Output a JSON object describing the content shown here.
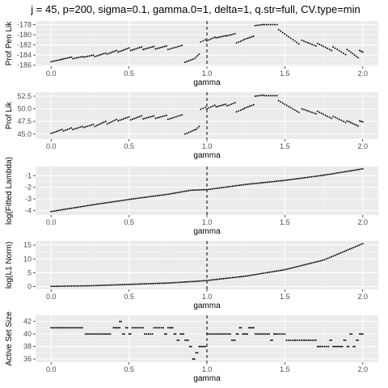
{
  "title": "j = 45, p=200, sigma=0.1, gamma.0=1, delta=1, q.str=full, CV.type=min",
  "colors": {
    "panel": "#ebebeb",
    "grid_major": "#ffffff",
    "grid_minor": "#f5f5f5",
    "points": "#000000",
    "vline": "#000000"
  },
  "chart_data": [
    {
      "type": "scatter",
      "xlabel": "gamma",
      "ylabel": "Prof Pen Lik",
      "xlim": [
        -0.1,
        2.1
      ],
      "ylim": [
        -186.2,
        -177.3
      ],
      "xticks": [
        0.0,
        0.5,
        1.0,
        1.5,
        2.0
      ],
      "xtick_labels": [
        "0.0",
        "0.5",
        "1.0",
        "1.5",
        "2.0"
      ],
      "yticks": [
        -186,
        -184,
        -182,
        -180,
        -178
      ],
      "ytick_labels": [
        "-186",
        "-184",
        "-182",
        "-180",
        "-178"
      ],
      "vline": 1.0,
      "segments": [
        {
          "x": [
            0.0,
            0.06
          ],
          "y": [
            -185.3,
            -184.9
          ]
        },
        {
          "x": [
            0.07,
            0.13
          ],
          "y": [
            -184.8,
            -184.4
          ]
        },
        {
          "x": [
            0.14,
            0.2
          ],
          "y": [
            -184.7,
            -184.3
          ]
        },
        {
          "x": [
            0.21,
            0.27
          ],
          "y": [
            -184.4,
            -184.0
          ]
        },
        {
          "x": [
            0.28,
            0.35
          ],
          "y": [
            -184.3,
            -183.6
          ]
        },
        {
          "x": [
            0.36,
            0.42
          ],
          "y": [
            -183.8,
            -183.1
          ]
        },
        {
          "x": [
            0.43,
            0.5
          ],
          "y": [
            -183.4,
            -182.6
          ]
        },
        {
          "x": [
            0.51,
            0.58
          ],
          "y": [
            -183.1,
            -182.4
          ]
        },
        {
          "x": [
            0.59,
            0.66
          ],
          "y": [
            -182.9,
            -182.3
          ]
        },
        {
          "x": [
            0.67,
            0.74
          ],
          "y": [
            -182.8,
            -182.2
          ]
        },
        {
          "x": [
            0.75,
            0.84
          ],
          "y": [
            -182.9,
            -182.1
          ]
        },
        {
          "x": [
            0.86,
            0.92
          ],
          "y": [
            -185.4,
            -184.7
          ]
        },
        {
          "x": [
            0.93,
            0.95
          ],
          "y": [
            -184.4,
            -183.8
          ]
        },
        {
          "x": [
            0.96,
            0.99
          ],
          "y": [
            -181.4,
            -181.0
          ]
        },
        {
          "x": [
            1.0,
            1.05
          ],
          "y": [
            -181.2,
            -180.5
          ]
        },
        {
          "x": [
            1.06,
            1.12
          ],
          "y": [
            -180.6,
            -180.2
          ]
        },
        {
          "x": [
            1.13,
            1.18
          ],
          "y": [
            -180.2,
            -179.8
          ]
        },
        {
          "x": [
            1.19,
            1.23
          ],
          "y": [
            -181.6,
            -181.1
          ]
        },
        {
          "x": [
            1.24,
            1.3
          ],
          "y": [
            -180.9,
            -180.3
          ]
        },
        {
          "x": [
            1.31,
            1.36
          ],
          "y": [
            -178.2,
            -178.0
          ]
        },
        {
          "x": [
            1.37,
            1.45
          ],
          "y": [
            -178.0,
            -178.0
          ]
        },
        {
          "x": [
            1.46,
            1.59
          ],
          "y": [
            -179.0,
            -181.8
          ]
        },
        {
          "x": [
            1.61,
            1.7
          ],
          "y": [
            -181.1,
            -182.2
          ]
        },
        {
          "x": [
            1.71,
            1.8
          ],
          "y": [
            -181.7,
            -183.1
          ]
        },
        {
          "x": [
            1.81,
            1.89
          ],
          "y": [
            -182.4,
            -183.9
          ]
        },
        {
          "x": [
            1.9,
            1.97
          ],
          "y": [
            -182.9,
            -184.5
          ]
        },
        {
          "x": [
            1.98,
            2.0
          ],
          "y": [
            -183.1,
            -183.4
          ]
        }
      ]
    },
    {
      "type": "scatter",
      "xlabel": "gamma",
      "ylabel": "Prof Lik",
      "xlim": [
        -0.1,
        2.1
      ],
      "ylim": [
        44.0,
        53.3
      ],
      "xticks": [
        0.0,
        0.5,
        1.0,
        1.5,
        2.0
      ],
      "xtick_labels": [
        "0.0",
        "0.5",
        "1.0",
        "1.5",
        "2.0"
      ],
      "yticks": [
        45.0,
        47.5,
        50.0,
        52.5
      ],
      "ytick_labels": [
        "45.0",
        "47.5",
        "50.0",
        "52.5"
      ],
      "vline": 1.0,
      "segments": [
        {
          "x": [
            0.0,
            0.07
          ],
          "y": [
            45.1,
            45.9
          ]
        },
        {
          "x": [
            0.08,
            0.13
          ],
          "y": [
            45.6,
            46.2
          ]
        },
        {
          "x": [
            0.14,
            0.2
          ],
          "y": [
            45.9,
            46.5
          ]
        },
        {
          "x": [
            0.21,
            0.27
          ],
          "y": [
            46.3,
            46.9
          ]
        },
        {
          "x": [
            0.28,
            0.35
          ],
          "y": [
            46.5,
            47.5
          ]
        },
        {
          "x": [
            0.36,
            0.42
          ],
          "y": [
            47.0,
            47.9
          ]
        },
        {
          "x": [
            0.43,
            0.5
          ],
          "y": [
            47.6,
            48.4
          ]
        },
        {
          "x": [
            0.51,
            0.58
          ],
          "y": [
            47.8,
            48.6
          ]
        },
        {
          "x": [
            0.59,
            0.66
          ],
          "y": [
            48.0,
            48.6
          ]
        },
        {
          "x": [
            0.67,
            0.74
          ],
          "y": [
            48.1,
            48.7
          ]
        },
        {
          "x": [
            0.75,
            0.84
          ],
          "y": [
            47.9,
            48.8
          ]
        },
        {
          "x": [
            0.86,
            0.92
          ],
          "y": [
            45.0,
            45.8
          ]
        },
        {
          "x": [
            0.93,
            0.95
          ],
          "y": [
            45.9,
            46.5
          ]
        },
        {
          "x": [
            0.96,
            0.99
          ],
          "y": [
            49.9,
            50.3
          ]
        },
        {
          "x": [
            1.0,
            1.05
          ],
          "y": [
            50.0,
            50.7
          ]
        },
        {
          "x": [
            1.06,
            1.12
          ],
          "y": [
            50.4,
            50.9
          ]
        },
        {
          "x": [
            1.13,
            1.18
          ],
          "y": [
            50.6,
            51.2
          ]
        },
        {
          "x": [
            1.19,
            1.23
          ],
          "y": [
            49.4,
            49.9
          ]
        },
        {
          "x": [
            1.24,
            1.3
          ],
          "y": [
            50.1,
            50.8
          ]
        },
        {
          "x": [
            1.31,
            1.36
          ],
          "y": [
            52.5,
            52.7
          ]
        },
        {
          "x": [
            1.37,
            1.45
          ],
          "y": [
            52.6,
            52.6
          ]
        },
        {
          "x": [
            1.46,
            1.59
          ],
          "y": [
            51.6,
            49.3
          ]
        },
        {
          "x": [
            1.61,
            1.7
          ],
          "y": [
            50.0,
            49.0
          ]
        },
        {
          "x": [
            1.71,
            1.8
          ],
          "y": [
            49.5,
            48.1
          ]
        },
        {
          "x": [
            1.81,
            1.89
          ],
          "y": [
            48.5,
            47.3
          ]
        },
        {
          "x": [
            1.9,
            1.97
          ],
          "y": [
            47.6,
            46.6
          ]
        },
        {
          "x": [
            1.98,
            2.0
          ],
          "y": [
            47.6,
            47.4
          ]
        }
      ]
    },
    {
      "type": "scatter",
      "xlabel": "gamma",
      "ylabel": "log(Fitted Lambda)",
      "xlim": [
        -0.1,
        2.1
      ],
      "ylim": [
        -4.4,
        -0.2
      ],
      "xticks": [
        0.0,
        0.5,
        1.0,
        1.5,
        2.0
      ],
      "xtick_labels": [
        "0.0",
        "0.5",
        "1.0",
        "1.5",
        "2.0"
      ],
      "yticks": [
        -4,
        -3,
        -2,
        -1
      ],
      "ytick_labels": [
        "-4",
        "-3",
        "-2",
        "-1"
      ],
      "vline": 1.0,
      "curve": {
        "x": [
          0.0,
          0.25,
          0.5,
          0.75,
          0.9,
          1.0,
          1.25,
          1.5,
          1.75,
          2.0
        ],
        "y": [
          -4.1,
          -3.55,
          -3.05,
          -2.6,
          -2.25,
          -2.2,
          -1.75,
          -1.4,
          -0.95,
          -0.4
        ]
      }
    },
    {
      "type": "scatter",
      "xlabel": "gamma",
      "ylabel": "log(L1 Norm)",
      "xlim": [
        -0.1,
        2.1
      ],
      "ylim": [
        -1.0,
        16.5
      ],
      "xticks": [
        0.0,
        0.5,
        1.0,
        1.5,
        2.0
      ],
      "xtick_labels": [
        "0.0",
        "0.5",
        "1.0",
        "1.5",
        "2.0"
      ],
      "yticks": [
        0,
        5,
        10,
        15
      ],
      "ytick_labels": [
        "0",
        "5",
        "10",
        "15"
      ],
      "vline": 1.0,
      "curve": {
        "x": [
          0.0,
          0.25,
          0.5,
          0.75,
          0.9,
          1.0,
          1.25,
          1.5,
          1.75,
          2.0
        ],
        "y": [
          0.1,
          0.3,
          0.8,
          1.3,
          1.8,
          2.2,
          3.8,
          6.1,
          9.6,
          15.5
        ]
      }
    },
    {
      "type": "scatter",
      "xlabel": "gamma",
      "ylabel": "Active Set Size",
      "xlim": [
        -0.1,
        2.1
      ],
      "ylim": [
        35.5,
        43.0
      ],
      "xticks": [
        0.0,
        0.5,
        1.0,
        1.5,
        2.0
      ],
      "xtick_labels": [
        "0.0",
        "0.5",
        "1.0",
        "1.5",
        "2.0"
      ],
      "yticks": [
        36,
        38,
        40,
        42
      ],
      "ytick_labels": [
        "36",
        "38",
        "40",
        "42"
      ],
      "vline": 1.0,
      "runs": [
        {
          "x": [
            0.0,
            0.2
          ],
          "y": 41
        },
        {
          "x": [
            0.22,
            0.38
          ],
          "y": 40
        },
        {
          "x": [
            0.4,
            0.44
          ],
          "y": 41
        },
        {
          "x": [
            0.44,
            0.45
          ],
          "y": 42
        },
        {
          "x": [
            0.46,
            0.47
          ],
          "y": 40
        },
        {
          "x": [
            0.48,
            0.49
          ],
          "y": 41
        },
        {
          "x": [
            0.5,
            0.51
          ],
          "y": 40
        },
        {
          "x": [
            0.52,
            0.59
          ],
          "y": 41
        },
        {
          "x": [
            0.6,
            0.65
          ],
          "y": 40
        },
        {
          "x": [
            0.66,
            0.72
          ],
          "y": 41
        },
        {
          "x": [
            0.73,
            0.74
          ],
          "y": 40
        },
        {
          "x": [
            0.75,
            0.78
          ],
          "y": 41
        },
        {
          "x": [
            0.79,
            0.8
          ],
          "y": 40
        },
        {
          "x": [
            0.81,
            0.82
          ],
          "y": 39
        },
        {
          "x": [
            0.83,
            0.85
          ],
          "y": 40
        },
        {
          "x": [
            0.86,
            0.88
          ],
          "y": 39
        },
        {
          "x": [
            0.89,
            0.9
          ],
          "y": 38
        },
        {
          "x": [
            0.91,
            0.92
          ],
          "y": 36
        },
        {
          "x": [
            0.93,
            0.94
          ],
          "y": 37
        },
        {
          "x": [
            0.95,
            0.99
          ],
          "y": 38
        },
        {
          "x": [
            1.0,
            1.15
          ],
          "y": 40
        },
        {
          "x": [
            1.16,
            1.18
          ],
          "y": 39
        },
        {
          "x": [
            1.19,
            1.2
          ],
          "y": 40
        },
        {
          "x": [
            1.21,
            1.22
          ],
          "y": 41
        },
        {
          "x": [
            1.23,
            1.26
          ],
          "y": 40
        },
        {
          "x": [
            1.27,
            1.3
          ],
          "y": 41
        },
        {
          "x": [
            1.31,
            1.4
          ],
          "y": 40
        },
        {
          "x": [
            1.41,
            1.42
          ],
          "y": 39
        },
        {
          "x": [
            1.43,
            1.44
          ],
          "y": 40
        },
        {
          "x": [
            1.45,
            1.5
          ],
          "y": 40
        },
        {
          "x": [
            1.51,
            1.56
          ],
          "y": 39
        },
        {
          "x": [
            1.57,
            1.62
          ],
          "y": 39
        },
        {
          "x": [
            1.63,
            1.7
          ],
          "y": 39
        },
        {
          "x": [
            1.71,
            1.72
          ],
          "y": 38
        },
        {
          "x": [
            1.73,
            1.78
          ],
          "y": 38
        },
        {
          "x": [
            1.79,
            1.8
          ],
          "y": 39
        },
        {
          "x": [
            1.81,
            1.85
          ],
          "y": 38
        },
        {
          "x": [
            1.86,
            1.87
          ],
          "y": 38
        },
        {
          "x": [
            1.88,
            1.89
          ],
          "y": 39
        },
        {
          "x": [
            1.9,
            1.91
          ],
          "y": 38
        },
        {
          "x": [
            1.92,
            1.93
          ],
          "y": 40
        },
        {
          "x": [
            1.94,
            1.95
          ],
          "y": 38
        },
        {
          "x": [
            1.96,
            1.97
          ],
          "y": 39
        },
        {
          "x": [
            1.98,
            1.99
          ],
          "y": 40
        },
        {
          "x": [
            2.0,
            2.0
          ],
          "y": 40
        }
      ]
    }
  ]
}
